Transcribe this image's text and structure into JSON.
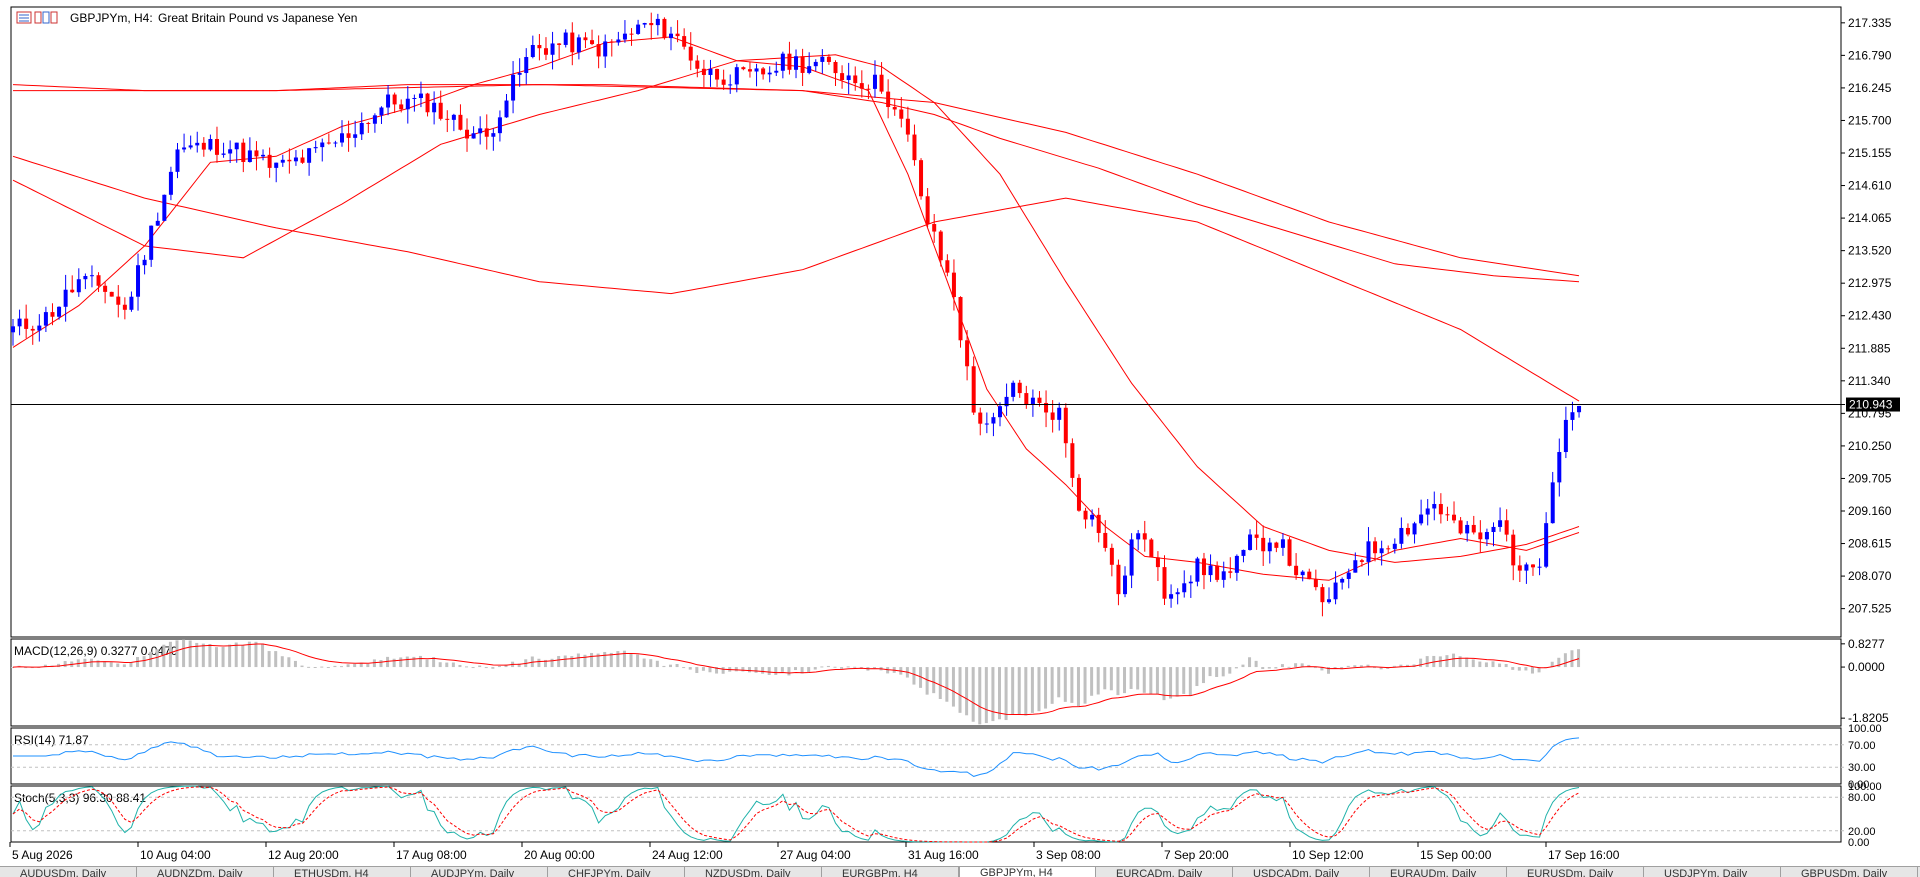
{
  "header": {
    "symbol": "GBPJPYm, H4:",
    "description": "Great Britain Pound vs Japanese Yen"
  },
  "colors": {
    "bull": "#0000ff",
    "bear": "#ff0000",
    "ma": "#ff0000",
    "macd_hist": "#c0c0c0",
    "rsi": "#1e90ff",
    "stoch_main": "#20b2aa",
    "stoch_signal": "#ff0000"
  },
  "chart_data": [
    {
      "type": "candlestick",
      "title": "GBPJPYm, H4: Great Britain Pound vs Japanese Yen",
      "ylim": [
        207.05,
        217.6
      ],
      "yticks": [
        "217.335",
        "216.790",
        "216.245",
        "215.700",
        "215.155",
        "214.610",
        "214.065",
        "213.520",
        "212.975",
        "212.430",
        "211.885",
        "211.340",
        "210.795",
        "210.250",
        "209.705",
        "209.160",
        "208.615",
        "208.070",
        "207.525"
      ],
      "current_price": "210.943",
      "keypoints": [
        [
          0,
          212.2
        ],
        [
          5,
          212.4
        ],
        [
          10,
          213.0
        ],
        [
          14,
          212.9
        ],
        [
          17,
          212.5
        ],
        [
          20,
          213.5
        ],
        [
          25,
          215.2
        ],
        [
          32,
          215.3
        ],
        [
          40,
          214.9
        ],
        [
          45,
          215.1
        ],
        [
          50,
          215.4
        ],
        [
          57,
          216.0
        ],
        [
          63,
          216.0
        ],
        [
          68,
          215.6
        ],
        [
          72,
          215.4
        ],
        [
          74,
          215.9
        ],
        [
          79,
          216.9
        ],
        [
          84,
          217.0
        ],
        [
          90,
          216.9
        ],
        [
          96,
          217.3
        ],
        [
          100,
          217.2
        ],
        [
          105,
          216.5
        ],
        [
          112,
          216.4
        ],
        [
          118,
          216.7
        ],
        [
          124,
          216.6
        ],
        [
          128,
          216.4
        ],
        [
          132,
          216.3
        ],
        [
          136,
          215.4
        ],
        [
          139,
          214.0
        ],
        [
          143,
          212.8
        ],
        [
          146,
          210.8
        ],
        [
          149,
          210.6
        ],
        [
          152,
          211.2
        ],
        [
          156,
          210.9
        ],
        [
          159,
          210.8
        ],
        [
          162,
          209.3
        ],
        [
          165,
          208.9
        ],
        [
          168,
          207.8
        ],
        [
          171,
          208.9
        ],
        [
          175,
          207.8
        ],
        [
          180,
          208.2
        ],
        [
          185,
          208.1
        ],
        [
          188,
          208.6
        ],
        [
          192,
          208.7
        ],
        [
          196,
          208.0
        ],
        [
          200,
          207.6
        ],
        [
          204,
          208.4
        ],
        [
          208,
          208.6
        ],
        [
          212,
          208.9
        ],
        [
          216,
          209.3
        ],
        [
          220,
          208.8
        ],
        [
          224,
          208.7
        ],
        [
          226,
          209.0
        ],
        [
          228,
          208.4
        ],
        [
          230,
          208.1
        ],
        [
          232,
          208.4
        ],
        [
          234,
          209.8
        ],
        [
          236,
          210.7
        ],
        [
          238,
          211.0
        ]
      ],
      "ma_lines": [
        {
          "ma": "short",
          "points": [
            [
              0,
              211.9
            ],
            [
              10,
              212.6
            ],
            [
              20,
              213.6
            ],
            [
              30,
              215.0
            ],
            [
              40,
              215.1
            ],
            [
              50,
              215.6
            ],
            [
              60,
              215.9
            ],
            [
              70,
              216.3
            ],
            [
              80,
              216.6
            ],
            [
              90,
              217.0
            ],
            [
              100,
              217.1
            ],
            [
              110,
              216.7
            ],
            [
              120,
              216.6
            ],
            [
              130,
              216.2
            ],
            [
              136,
              214.8
            ],
            [
              142,
              213.0
            ],
            [
              148,
              211.2
            ],
            [
              154,
              210.2
            ],
            [
              160,
              209.6
            ],
            [
              166,
              208.9
            ],
            [
              172,
              208.4
            ],
            [
              180,
              208.3
            ],
            [
              190,
              208.1
            ],
            [
              200,
              208.0
            ],
            [
              210,
              208.5
            ],
            [
              220,
              208.7
            ],
            [
              230,
              208.5
            ],
            [
              238,
              208.8
            ]
          ]
        },
        {
          "ma": "mid",
          "points": [
            [
              0,
              214.7
            ],
            [
              20,
              213.6
            ],
            [
              35,
              213.4
            ],
            [
              50,
              214.3
            ],
            [
              65,
              215.3
            ],
            [
              80,
              215.8
            ],
            [
              95,
              216.2
            ],
            [
              110,
              216.7
            ],
            [
              125,
              216.8
            ],
            [
              132,
              216.6
            ],
            [
              140,
              216.0
            ],
            [
              150,
              214.8
            ],
            [
              160,
              213.0
            ],
            [
              170,
              211.3
            ],
            [
              180,
              209.9
            ],
            [
              190,
              208.9
            ],
            [
              200,
              208.5
            ],
            [
              210,
              208.3
            ],
            [
              220,
              208.4
            ],
            [
              230,
              208.6
            ],
            [
              238,
              208.9
            ]
          ]
        },
        {
          "ma": "long",
          "points": [
            [
              0,
              215.1
            ],
            [
              20,
              214.4
            ],
            [
              40,
              213.9
            ],
            [
              60,
              213.5
            ],
            [
              80,
              213.0
            ],
            [
              100,
              212.8
            ],
            [
              120,
              213.2
            ],
            [
              140,
              214.0
            ],
            [
              160,
              214.4
            ],
            [
              180,
              214.0
            ],
            [
              200,
              213.1
            ],
            [
              220,
              212.2
            ],
            [
              238,
              211.0
            ]
          ]
        },
        {
          "ma": "flat",
          "points": [
            [
              0,
              216.2
            ],
            [
              40,
              216.2
            ],
            [
              80,
              216.3
            ],
            [
              120,
              216.2
            ],
            [
              140,
              216.0
            ],
            [
              160,
              215.5
            ],
            [
              180,
              214.8
            ],
            [
              200,
              214.0
            ],
            [
              220,
              213.4
            ],
            [
              238,
              213.1
            ]
          ]
        },
        {
          "ma": "upper-band",
          "points": [
            [
              0,
              216.3
            ],
            [
              20,
              216.2
            ],
            [
              40,
              216.2
            ],
            [
              60,
              216.3
            ],
            [
              90,
              216.3
            ],
            [
              120,
              216.2
            ],
            [
              132,
              216.0
            ],
            [
              140,
              215.8
            ],
            [
              150,
              215.4
            ],
            [
              165,
              214.9
            ],
            [
              180,
              214.3
            ],
            [
              195,
              213.8
            ],
            [
              210,
              213.3
            ],
            [
              225,
              213.1
            ],
            [
              238,
              213.0
            ]
          ]
        }
      ]
    },
    {
      "type": "histogram",
      "title": "MACD(12,26,9) 0.3277 0.0470",
      "ylim": [
        -2.1,
        1.0
      ],
      "yticks": [
        "0.8277",
        "0.0000",
        "-1.8205"
      ]
    },
    {
      "type": "line",
      "title": "RSI(14) 71.87",
      "ylim": [
        0,
        100
      ],
      "yticks": [
        "100.00",
        "70.00",
        "30.00",
        "0.00"
      ]
    },
    {
      "type": "line",
      "title": "Stoch(5,3,3) 96.30 88.41",
      "ylim": [
        0,
        100
      ],
      "yticks": [
        "100.00",
        "80.00",
        "20.00",
        "0.00"
      ]
    },
    {
      "type": "axis",
      "xticks": [
        "5 Aug 2026",
        "10 Aug 04:00",
        "12 Aug 20:00",
        "17 Aug 08:00",
        "20 Aug 00:00",
        "24 Aug 12:00",
        "27 Aug 04:00",
        "31 Aug 16:00",
        "3 Sep 08:00",
        "7 Sep 20:00",
        "10 Sep 12:00",
        "15 Sep 00:00",
        "17 Sep 16:00"
      ]
    }
  ],
  "tabs": [
    "AUDUSDm, Daily",
    "AUDNZDm, Daily",
    "ETHUSDm, H4",
    "AUDJPYm, Daily",
    "CHFJPYm, Daily",
    "NZDUSDm, Daily",
    "EURGBPm, H4",
    "GBPJPYm, H4",
    "EURCADm, Daily",
    "USDCADm, Daily",
    "EURAUDm, Daily",
    "EURUSDm, Daily",
    "USDJPYm, Daily",
    "GBPUSDm, Daily"
  ]
}
